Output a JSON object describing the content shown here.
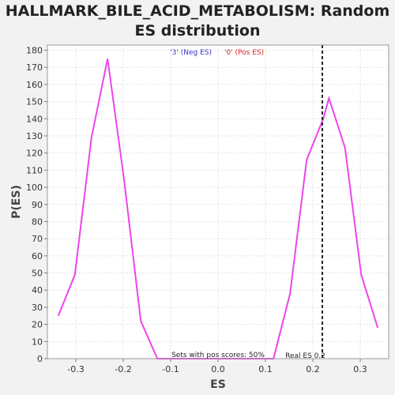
{
  "chart_data": {
    "type": "line",
    "title_line1": "HALLMARK_BILE_ACID_METABOLISM: Random",
    "title_line2": "ES distribution",
    "xlabel": "ES",
    "ylabel": "P(ES)",
    "xlim": [
      -0.36,
      0.36
    ],
    "ylim": [
      0,
      183
    ],
    "x_ticks": [
      -0.3,
      -0.2,
      -0.1,
      0.0,
      0.1,
      0.2,
      0.3
    ],
    "x_tick_labels": [
      "-0.3",
      "-0.2",
      "-0.1",
      "0.0",
      "0.1",
      "0.2",
      "0.3"
    ],
    "y_ticks": [
      0,
      10,
      20,
      30,
      40,
      50,
      60,
      70,
      80,
      90,
      100,
      110,
      120,
      130,
      140,
      150,
      160,
      170,
      180
    ],
    "grid": true,
    "legend": {
      "placement": "top-center",
      "entries": [
        {
          "label": "'3' (Neg ES)",
          "color": "#3333cc"
        },
        {
          "label": "'0' (Pos ES)",
          "color": "#dd2222"
        }
      ]
    },
    "series": [
      {
        "color": "#ee44ee",
        "points": [
          [
            -0.337,
            25
          ],
          [
            -0.302,
            49
          ],
          [
            -0.267,
            129
          ],
          [
            -0.233,
            175
          ],
          [
            -0.198,
            104
          ],
          [
            -0.163,
            22
          ],
          [
            -0.128,
            0
          ],
          [
            -0.093,
            0
          ],
          [
            -0.058,
            0
          ],
          [
            -0.023,
            0
          ],
          [
            0.012,
            0
          ],
          [
            0.047,
            0
          ],
          [
            0.082,
            0
          ],
          [
            0.117,
            0
          ],
          [
            0.152,
            38
          ],
          [
            0.187,
            116
          ],
          [
            0.222,
            140
          ],
          [
            0.234,
            152
          ],
          [
            0.268,
            123
          ],
          [
            0.302,
            49
          ],
          [
            0.337,
            18
          ]
        ]
      }
    ],
    "real_es": 0.22,
    "real_es_label": "Real ES 0.2",
    "pos_scores_label": "Sets with pos scores: 50%"
  }
}
